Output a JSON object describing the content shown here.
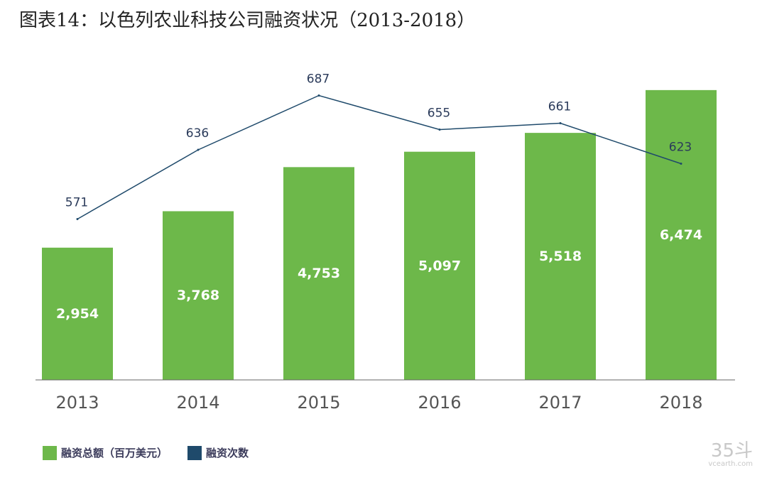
{
  "title": "图表14：以色列农业科技公司融资状况（2013-2018）",
  "colors": {
    "bar": "#6db84a",
    "line": "#1f4a6b",
    "axis_label": "#555555",
    "bar_label": "#ffffff",
    "line_label": "#2a3a5a"
  },
  "chart_data": {
    "type": "bar",
    "categories": [
      "2013",
      "2014",
      "2015",
      "2016",
      "2017",
      "2018"
    ],
    "series": [
      {
        "name": "融资总额（百万美元）",
        "type": "bar",
        "values": [
          2954,
          3768,
          4753,
          5097,
          5518,
          6474
        ],
        "labels": [
          "2,954",
          "3,768",
          "4,753",
          "5,097",
          "5,518",
          "6,474"
        ]
      },
      {
        "name": "融资次数",
        "type": "line",
        "values": [
          571,
          636,
          687,
          655,
          661,
          623
        ],
        "labels": [
          "571",
          "636",
          "687",
          "655",
          "661",
          "623"
        ]
      }
    ],
    "ylim": [
      0,
      6900
    ],
    "line_ylim": [
      420,
      710
    ],
    "legend_position": "bottom-left"
  },
  "legend": [
    {
      "label": "融资总额（百万美元）",
      "color": "#6db84a"
    },
    {
      "label": "融资次数",
      "color": "#1f4a6b"
    }
  ],
  "watermark": {
    "logo": "35斗",
    "sub": "vcearth.com"
  }
}
